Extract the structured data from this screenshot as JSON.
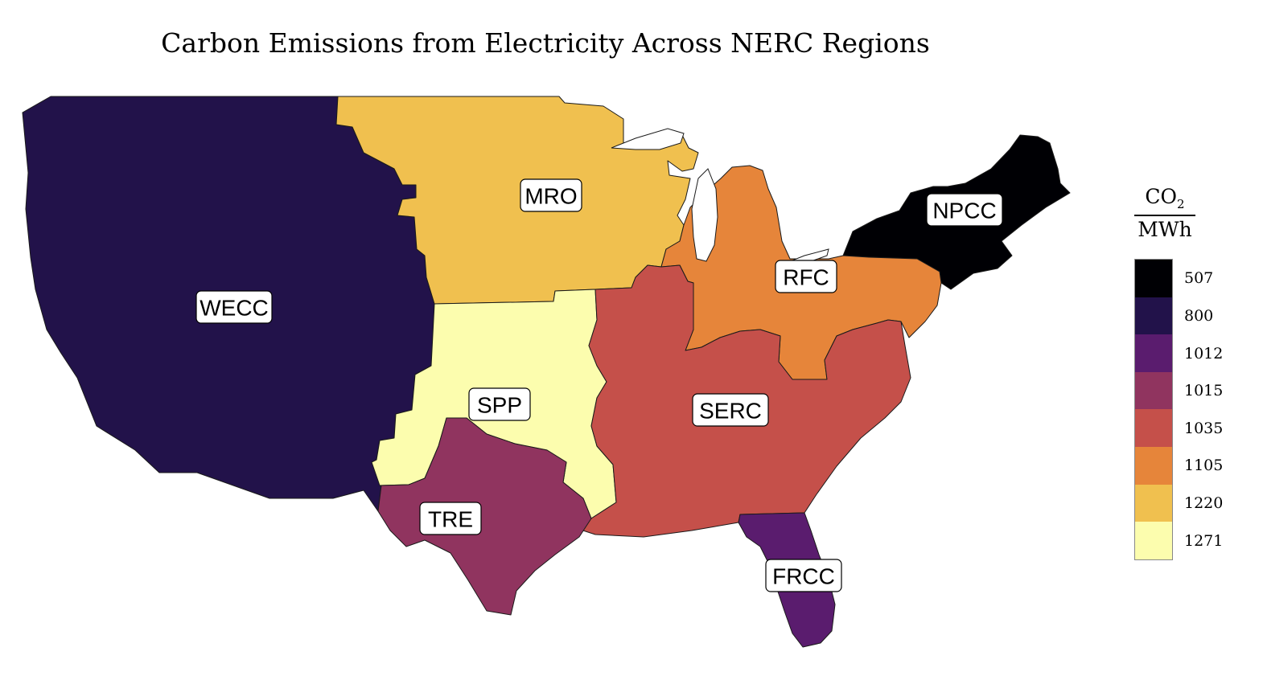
{
  "title": "Carbon Emissions from Electricity Across NERC Regions",
  "colorbar": {
    "numerator": "CO",
    "numerator_sub": "2",
    "denominator": "MWh",
    "levels": [
      {
        "value": "507",
        "color": "#000004"
      },
      {
        "value": "800",
        "color": "#22124a"
      },
      {
        "value": "1012",
        "color": "#5a1c6e"
      },
      {
        "value": "1015",
        "color": "#90345f"
      },
      {
        "value": "1035",
        "color": "#c5504a"
      },
      {
        "value": "1105",
        "color": "#e6853a"
      },
      {
        "value": "1220",
        "color": "#f0c04f"
      },
      {
        "value": "1271",
        "color": "#fcfdae"
      }
    ]
  },
  "regions": [
    {
      "key": "wecc",
      "label": "WECC",
      "value": "800"
    },
    {
      "key": "mro",
      "label": "MRO",
      "value": "1220"
    },
    {
      "key": "npcc",
      "label": "NPCC",
      "value": "507"
    },
    {
      "key": "rfc",
      "label": "RFC",
      "value": "1105"
    },
    {
      "key": "spp",
      "label": "SPP",
      "value": "1271"
    },
    {
      "key": "serc",
      "label": "SERC",
      "value": "1035"
    },
    {
      "key": "tre",
      "label": "TRE",
      "value": "1015"
    },
    {
      "key": "frcc",
      "label": "FRCC",
      "value": "1012"
    }
  ]
}
